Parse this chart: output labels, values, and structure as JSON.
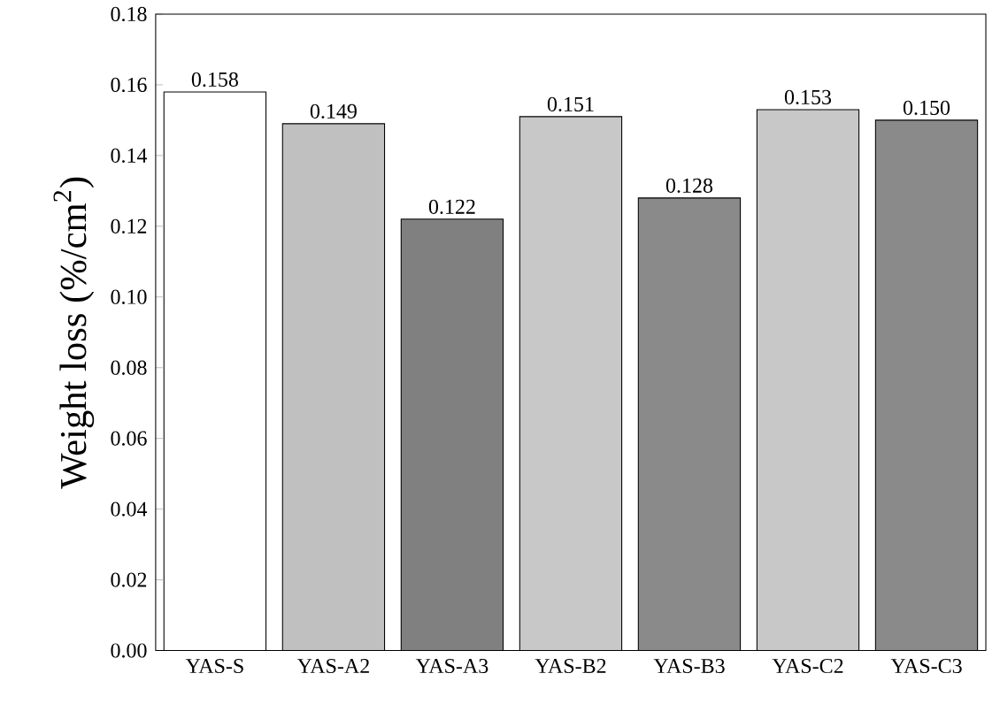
{
  "chart_data": {
    "type": "bar",
    "ylabel": "Weight loss (%/cm$^{2}$)",
    "categories": [
      "YAS-S",
      "YAS-A2",
      "YAS-A3",
      "YAS-B2",
      "YAS-B3",
      "YAS-C2",
      "YAS-C3"
    ],
    "values": [
      0.158,
      0.149,
      0.122,
      0.151,
      0.128,
      0.153,
      0.15
    ],
    "value_labels": [
      "0.158",
      "0.149",
      "0.122",
      "0.151",
      "0.128",
      "0.153",
      "0.150"
    ],
    "colors": [
      "#ffffff",
      "#c0c0c0",
      "#808080",
      "#c8c8c8",
      "#8a8a8a",
      "#c8c8c8",
      "#8a8a8a"
    ],
    "ylim": [
      0,
      0.18
    ],
    "yticks": [
      {
        "value": 0,
        "label": "0.00"
      },
      {
        "value": 0.02,
        "label": "0.02"
      },
      {
        "value": 0.04,
        "label": "0.04"
      },
      {
        "value": 0.06,
        "label": "0.06"
      },
      {
        "value": 0.08,
        "label": "0.08"
      },
      {
        "value": 0.1,
        "label": "0.10"
      },
      {
        "value": 0.12,
        "label": "0.12"
      },
      {
        "value": 0.14,
        "label": "0.14"
      },
      {
        "value": 0.16,
        "label": "0.16"
      },
      {
        "value": 0.18,
        "label": "0.18"
      }
    ],
    "grid": false
  }
}
